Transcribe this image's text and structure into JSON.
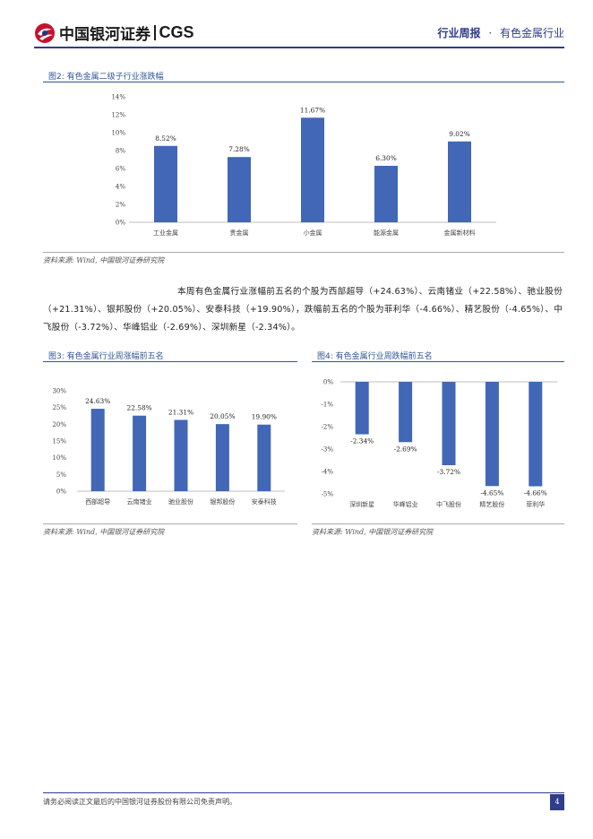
{
  "header": {
    "brand_cn": "中国银河证券",
    "brand_en": "CGS",
    "report_type": "行业周报",
    "separator": "·",
    "industry": "有色金属行业"
  },
  "colors": {
    "accent": "#2f3d8a",
    "bar": "#4167b6",
    "title": "#2f5597"
  },
  "fig2": {
    "title": "图2:  有色金属二级子行业涨跌幅",
    "source": "资料来源:  Wind,  中国银河证券研究院"
  },
  "paragraph": {
    "text": "本周有色金属行业涨幅前五名的个股为西部超导（+24.63%）、云南锗业（+22.58%）、驰业股份（+21.31%）、银邦股份（+20.05%）、安泰科技（+19.90%），跌幅前五名的个股为菲利华（-4.66%）、精艺股份（-4.65%）、中飞股份（-3.72%）、华峰铝业（-2.69%）、深圳新星（-2.34%）。"
  },
  "fig3": {
    "title": "图3:  有色金属行业周涨幅前五名",
    "source": "资料来源:  Wind,  中国银河证券研究院"
  },
  "fig4": {
    "title": "图4:  有色金属行业周跌幅前五名",
    "source": "资料来源:  Wind,  中国银河证券研究院"
  },
  "chart_data": [
    {
      "type": "bar",
      "categories": [
        "工业金属",
        "贵金属",
        "小金属",
        "能源金属",
        "金属新材料"
      ],
      "values": [
        8.52,
        7.28,
        11.67,
        6.3,
        9.02
      ],
      "labels": [
        "8.52%",
        "7.28%",
        "11.67%",
        "6.30%",
        "9.02%"
      ],
      "yticks": [
        "0%",
        "2%",
        "4%",
        "6%",
        "8%",
        "10%",
        "12%",
        "14%"
      ],
      "ylim": [
        0,
        14
      ],
      "grid": false
    },
    {
      "type": "bar",
      "categories": [
        "西部超导",
        "云南锗业",
        "驰业股份",
        "银邦股份",
        "安泰科技"
      ],
      "values": [
        24.63,
        22.58,
        21.31,
        20.05,
        19.9
      ],
      "labels": [
        "24.63%",
        "22.58%",
        "21.31%",
        "20.05%",
        "19.90%"
      ],
      "yticks": [
        "0%",
        "5%",
        "10%",
        "15%",
        "20%",
        "25%",
        "30%"
      ],
      "ylim": [
        0,
        30
      ],
      "grid": false
    },
    {
      "type": "bar",
      "categories": [
        "深圳新星",
        "华峰铝业",
        "中飞股份",
        "精艺股份",
        "菲利华"
      ],
      "values": [
        -2.34,
        -2.69,
        -3.72,
        -4.65,
        -4.66
      ],
      "labels": [
        "-2.34%",
        "-2.69%",
        "-3.72%",
        "-4.65%",
        "-4.66%"
      ],
      "yticks": [
        "0%",
        "-1%",
        "-2%",
        "-3%",
        "-4%",
        "-5%"
      ],
      "ylim": [
        -5,
        0
      ],
      "grid": false
    }
  ],
  "footer": {
    "disclaimer": "请务必阅读正文最后的中国银河证券股份有限公司免责声明。",
    "page": "4"
  }
}
